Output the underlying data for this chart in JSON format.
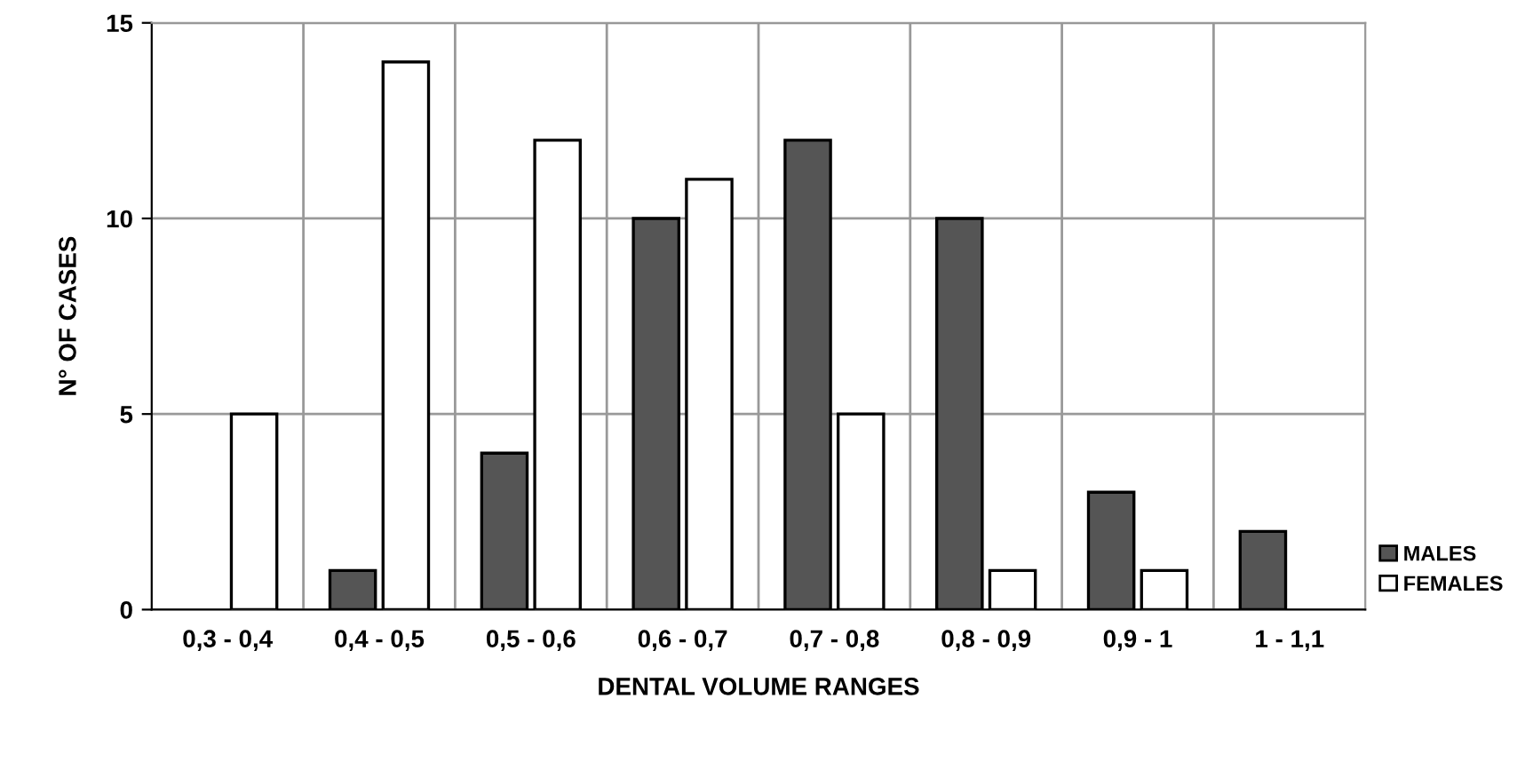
{
  "chart_data": {
    "type": "bar",
    "xlabel": "DENTAL VOLUME RANGES",
    "ylabel": "N° OF CASES",
    "categories": [
      "0,3 - 0,4",
      "0,4 - 0,5",
      "0,5 - 0,6",
      "0,6 - 0,7",
      "0,7 - 0,8",
      "0,8 - 0,9",
      "0,9 - 1",
      "1 - 1,1"
    ],
    "series": [
      {
        "name": "MALES",
        "color": "#555555",
        "values": [
          null,
          1,
          4,
          10,
          12,
          10,
          3,
          2
        ]
      },
      {
        "name": "FEMALES",
        "color": "#ffffff",
        "values": [
          5,
          14,
          12,
          11,
          5,
          1,
          1,
          null
        ]
      }
    ],
    "ylim": [
      0,
      15
    ],
    "yticks": [
      0,
      5,
      10,
      15
    ],
    "grid": true,
    "legend": "bottom right"
  }
}
